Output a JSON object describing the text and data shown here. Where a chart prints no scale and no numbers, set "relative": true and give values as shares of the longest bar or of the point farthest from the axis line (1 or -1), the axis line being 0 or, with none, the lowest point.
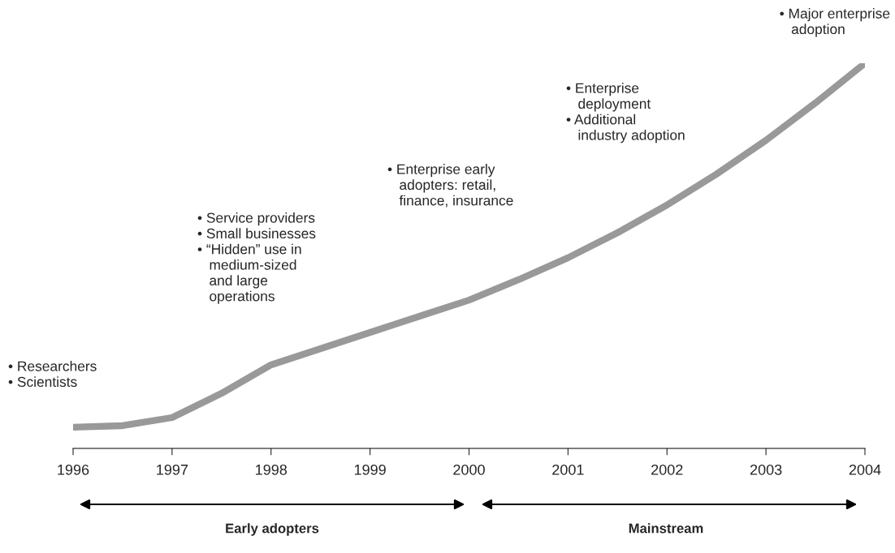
{
  "chart_data": {
    "type": "line",
    "relative": true,
    "x": [
      1996,
      1996.5,
      1997,
      1997.5,
      1998,
      1998.5,
      1999,
      1999.5,
      2000,
      2000.5,
      2001,
      2001.5,
      2002,
      2002.5,
      2003,
      2003.5,
      2004
    ],
    "series": [
      {
        "color": "#999999",
        "values": [
          0.055,
          0.059,
          0.08,
          0.143,
          0.217,
          0.259,
          0.301,
          0.343,
          0.385,
          0.438,
          0.495,
          0.56,
          0.632,
          0.712,
          0.8,
          0.897,
          1
        ]
      }
    ],
    "grid": false,
    "legend": false,
    "marker": "none",
    "line_style": "solid",
    "xlim": [
      1996,
      2004
    ],
    "xticks": [
      1996,
      1997,
      1998,
      1999,
      2000,
      2001,
      2002,
      2003,
      2004
    ],
    "annotations": [
      "• Researchers\n• Scientists",
      "• Service providers\n• Small businesses\n• “Hidden” use in\n   medium-sized\n   and large\n   operations",
      "• Enterprise early\n   adopters: retail,\n   finance, insurance",
      "• Enterprise\n   deployment\n• Additional\n   industry adoption",
      "• Major enterprise\n   adoption",
      "Early adopters",
      "Mainstream"
    ]
  }
}
